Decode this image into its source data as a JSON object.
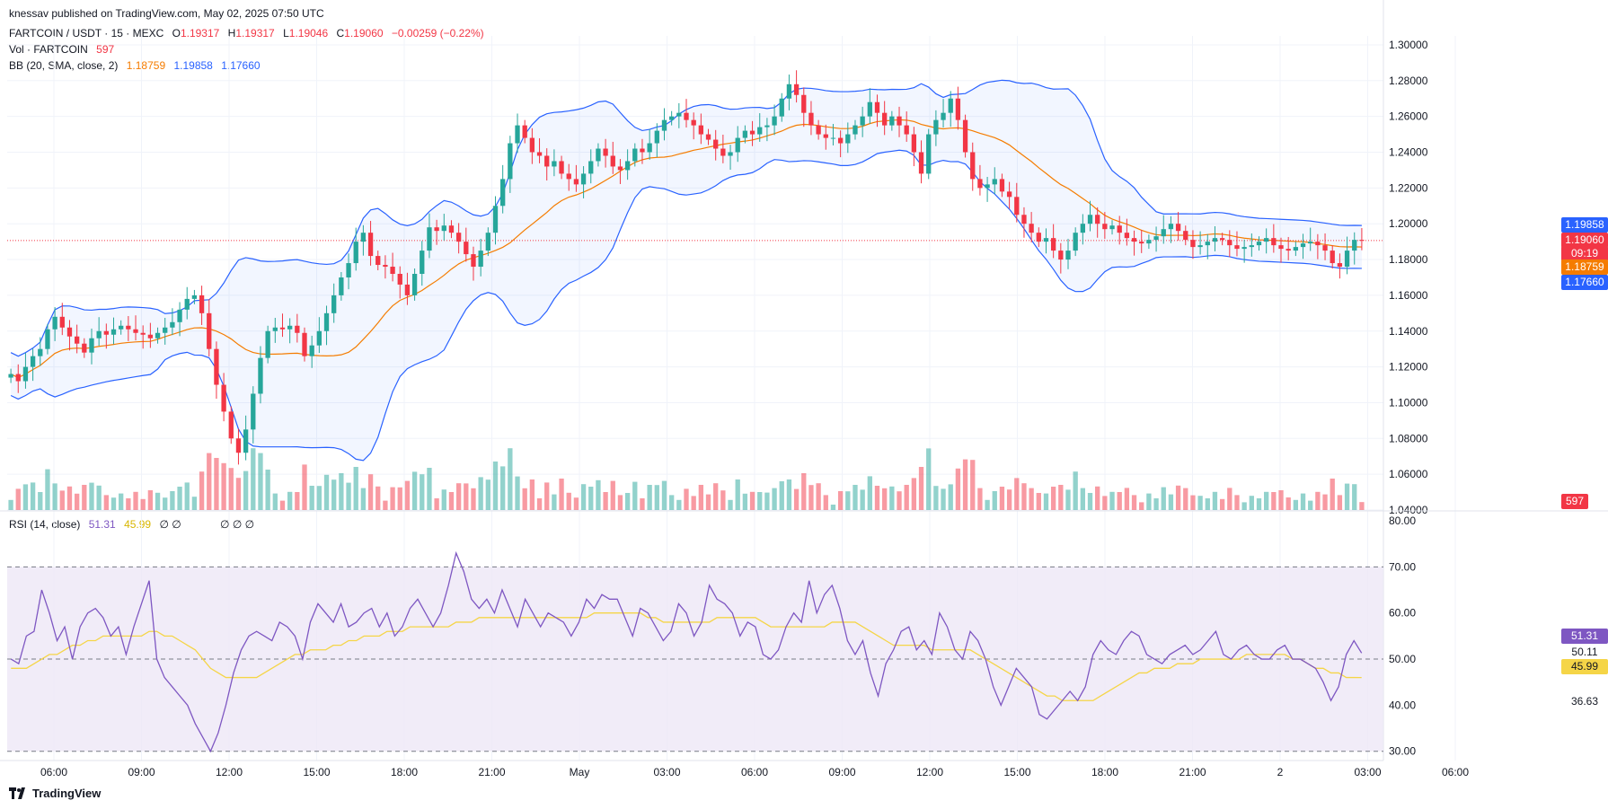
{
  "header": {
    "published": "knessav published on TradingView.com, May 02, 2025 07:50 UTC"
  },
  "legend": {
    "symbol": "FARTCOIN / USDT · 15 · MEXC",
    "o_label": "O",
    "o": "1.19317",
    "h_label": "H",
    "h": "1.19317",
    "l_label": "L",
    "l": "1.19046",
    "c_label": "C",
    "c": "1.19060",
    "change": "−0.00259 (−0.22%)",
    "vol_label": "Vol · FARTCOIN",
    "vol": "597",
    "bb_label": "BB (20, SMA, close, 2)",
    "bb_mid": "1.18759",
    "bb_up": "1.19858",
    "bb_low": "1.17660",
    "rsi_label": "RSI (14, close)",
    "rsi": "51.31",
    "rsi_ma": "45.99",
    "rsi_extra": "∅ ∅",
    "extra": "∅ ∅ ∅"
  },
  "price_tags": {
    "bb_up": "1.19858",
    "close": "1.19060",
    "countdown": "09:19",
    "bb_mid": "1.18759",
    "bb_low": "1.17660",
    "vol": "597",
    "rsi": "51.31",
    "rsi_level": "50.11",
    "rsi_ma": "45.99",
    "rsi_low": "36.63"
  },
  "colors": {
    "up": "#26a69a",
    "down": "#f23645",
    "bb_band": "#2962ff",
    "bb_mid": "#f57c00",
    "rsi": "#7e57c2",
    "rsi_ma": "#f5d547",
    "rsi_fill": "#ede7f6"
  },
  "footer": {
    "brand": "TradingView"
  },
  "chart_data": {
    "type": "candlestick",
    "price_ticks": [
      "1.30000",
      "1.28000",
      "1.26000",
      "1.24000",
      "1.22000",
      "1.20000",
      "1.18000",
      "1.16000",
      "1.14000",
      "1.12000",
      "1.10000",
      "1.08000",
      "1.06000",
      "1.04000"
    ],
    "price_range": [
      1.04,
      1.305
    ],
    "rsi_ticks": [
      "80.00",
      "70.00",
      "60.00",
      "50.00",
      "40.00",
      "30.00"
    ],
    "rsi_range": [
      28,
      80
    ],
    "time_labels": [
      "06:00",
      "09:00",
      "12:00",
      "15:00",
      "18:00",
      "21:00",
      "May",
      "03:00",
      "06:00",
      "09:00",
      "12:00",
      "15:00",
      "18:00",
      "21:00",
      "2",
      "03:00",
      "06:00"
    ],
    "close": [
      1.116,
      1.112,
      1.12,
      1.126,
      1.13,
      1.141,
      1.148,
      1.142,
      1.137,
      1.133,
      1.128,
      1.136,
      1.14,
      1.138,
      1.141,
      1.143,
      1.141,
      1.139,
      1.138,
      1.136,
      1.139,
      1.142,
      1.145,
      1.152,
      1.158,
      1.16,
      1.15,
      1.13,
      1.11,
      1.095,
      1.08,
      1.072,
      1.085,
      1.105,
      1.125,
      1.14,
      1.142,
      1.141,
      1.143,
      1.139,
      1.126,
      1.132,
      1.14,
      1.15,
      1.16,
      1.17,
      1.178,
      1.19,
      1.195,
      1.182,
      1.177,
      1.176,
      1.172,
      1.166,
      1.16,
      1.172,
      1.185,
      1.198,
      1.196,
      1.199,
      1.195,
      1.19,
      1.183,
      1.176,
      1.185,
      1.195,
      1.21,
      1.225,
      1.245,
      1.255,
      1.248,
      1.24,
      1.238,
      1.232,
      1.235,
      1.228,
      1.225,
      1.222,
      1.228,
      1.235,
      1.242,
      1.238,
      1.232,
      1.23,
      1.235,
      1.242,
      1.24,
      1.245,
      1.252,
      1.258,
      1.26,
      1.262,
      1.258,
      1.255,
      1.25,
      1.247,
      1.242,
      1.238,
      1.24,
      1.248,
      1.252,
      1.25,
      1.254,
      1.255,
      1.26,
      1.27,
      1.278,
      1.272,
      1.262,
      1.255,
      1.25,
      1.248,
      1.248,
      1.245,
      1.25,
      1.255,
      1.26,
      1.268,
      1.262,
      1.255,
      1.26,
      1.255,
      1.25,
      1.24,
      1.228,
      1.25,
      1.258,
      1.262,
      1.27,
      1.258,
      1.24,
      1.225,
      1.22,
      1.222,
      1.225,
      1.218,
      1.215,
      1.205,
      1.2,
      1.195,
      1.19,
      1.192,
      1.185,
      1.18,
      1.185,
      1.195,
      1.2,
      1.205,
      1.2,
      1.197,
      1.199,
      1.195,
      1.192,
      1.19,
      1.189,
      1.191,
      1.193,
      1.197,
      1.2,
      1.196,
      1.191,
      1.187,
      1.188,
      1.19,
      1.192,
      1.191,
      1.188,
      1.186,
      1.187,
      1.188,
      1.19,
      1.192,
      1.188,
      1.186,
      1.185,
      1.187,
      1.189,
      1.19,
      1.188,
      1.185,
      1.178,
      1.176,
      1.185,
      1.191,
      1.1906
    ],
    "volume_scale_note": "",
    "rsi": [
      50,
      49,
      55,
      56,
      65,
      60,
      54,
      57,
      50,
      57,
      60,
      61,
      59,
      55,
      57,
      51,
      57,
      62,
      67,
      50,
      46,
      44,
      42,
      40,
      36,
      33,
      30,
      34,
      40,
      47,
      52,
      55,
      56,
      55,
      54,
      58,
      57,
      55,
      50,
      58,
      62,
      60,
      58,
      62,
      57,
      58,
      60,
      61,
      57,
      60,
      55,
      57,
      61,
      63,
      60,
      57,
      60,
      66,
      73,
      69,
      63,
      61,
      63,
      60,
      65,
      61,
      57,
      63,
      60,
      57,
      60,
      59,
      58,
      55,
      58,
      63,
      61,
      64,
      63,
      63,
      59,
      55,
      61,
      60,
      57,
      54,
      56,
      62,
      60,
      55,
      58,
      66,
      63,
      62,
      60,
      55,
      58,
      57,
      51,
      50,
      52,
      57,
      60,
      58,
      67,
      60,
      64,
      66,
      61,
      54,
      51,
      54,
      47,
      42,
      49,
      52,
      56,
      57,
      52,
      54,
      51,
      60,
      57,
      52,
      50,
      56,
      54,
      50,
      44,
      40,
      44,
      48,
      46,
      44,
      38,
      37,
      39,
      41,
      43,
      41,
      44,
      51,
      54,
      52,
      51,
      54,
      56,
      55,
      51,
      50,
      49,
      51,
      52,
      53,
      51,
      52,
      54,
      56,
      51,
      50,
      52,
      53,
      51,
      50,
      50,
      52,
      53,
      50,
      50,
      49,
      48,
      45,
      41,
      44,
      51,
      54,
      51.31
    ],
    "rsi_ma": [
      48,
      48,
      48,
      49,
      50,
      51,
      51,
      52,
      53,
      53,
      54,
      54,
      55,
      55,
      55,
      55,
      55,
      55,
      56,
      56,
      55,
      55,
      54,
      53,
      52,
      50,
      48,
      47,
      46,
      46,
      46,
      46,
      46,
      47,
      48,
      49,
      50,
      51,
      51,
      52,
      52,
      52,
      53,
      53,
      54,
      54,
      55,
      55,
      55,
      56,
      56,
      56,
      57,
      57,
      57,
      57,
      57,
      57,
      58,
      58,
      58,
      59,
      59,
      59,
      59,
      59,
      59,
      59,
      59,
      59,
      59,
      59,
      59,
      59,
      59,
      59,
      60,
      60,
      60,
      60,
      60,
      60,
      60,
      59,
      59,
      58,
      58,
      58,
      58,
      58,
      58,
      58,
      59,
      59,
      59,
      59,
      59,
      59,
      58,
      57,
      57,
      57,
      57,
      57,
      57,
      57,
      57,
      58,
      58,
      58,
      58,
      57,
      56,
      55,
      54,
      53,
      53,
      53,
      53,
      53,
      52,
      52,
      52,
      52,
      52,
      52,
      51,
      50,
      49,
      48,
      47,
      46,
      45,
      44,
      43,
      42,
      42,
      41,
      41,
      41,
      41,
      41,
      42,
      43,
      44,
      45,
      46,
      47,
      47,
      48,
      48,
      48,
      49,
      49,
      49,
      50,
      50,
      50,
      50,
      50,
      50,
      51,
      51,
      51,
      51,
      51,
      51,
      50,
      50,
      49,
      48,
      48,
      47,
      47,
      46,
      46,
      45.99
    ]
  }
}
